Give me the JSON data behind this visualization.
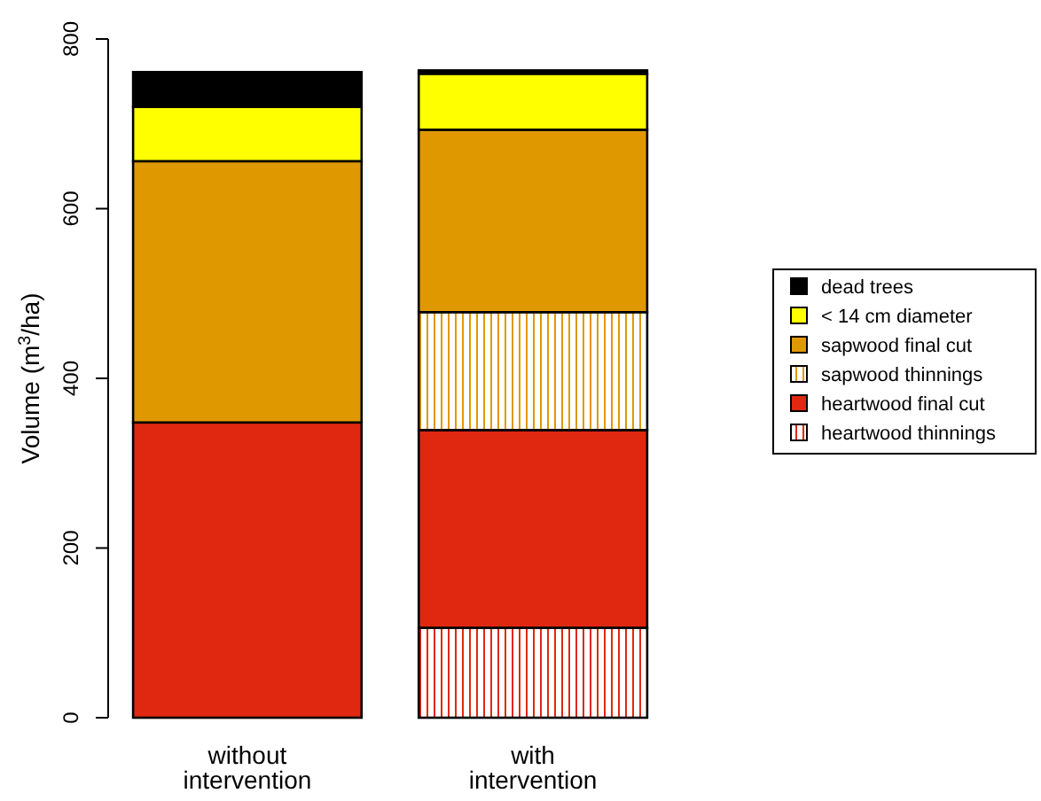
{
  "chart_data": {
    "type": "bar",
    "stacked": true,
    "ylabel": "Volume (m$^{3}$/ha)",
    "categories": [
      "without intervention",
      "with intervention"
    ],
    "ylim": [
      0,
      800
    ],
    "yticks": [
      0,
      200,
      400,
      600,
      800
    ],
    "legend": "right",
    "grid": false,
    "series": [
      {
        "name": "heartwood thinnings",
        "color": "#e02810",
        "values": [
          0,
          106
        ]
      },
      {
        "name": "heartwood final cut",
        "color": "#e02810",
        "values": [
          348,
          233
        ]
      },
      {
        "name": "sapwood thinnings",
        "color": "#e09800",
        "values": [
          0,
          139
        ]
      },
      {
        "name": "sapwood final cut",
        "color": "#e09800",
        "values": [
          308,
          215
        ]
      },
      {
        "name": "< 14 cm diameter",
        "color": "#ffff00",
        "values": [
          64,
          66
        ]
      },
      {
        "name": "dead trees",
        "color": "#000000",
        "values": [
          41,
          4
        ]
      }
    ]
  }
}
